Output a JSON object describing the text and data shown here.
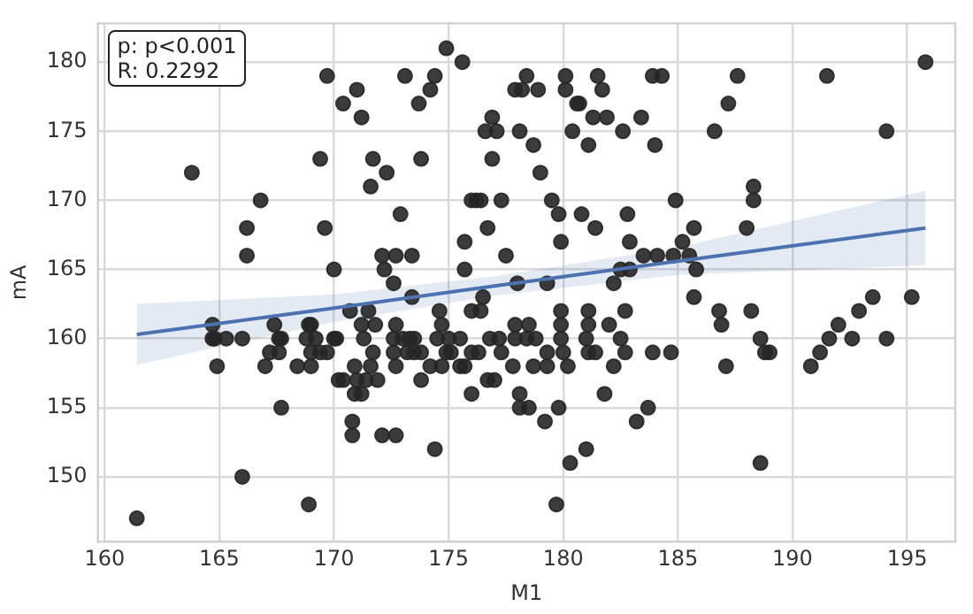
{
  "chart_data": {
    "type": "scatter",
    "xlabel": "M1",
    "ylabel": "mA",
    "annotations": [
      "p: p<0.001",
      "R: 0.2292"
    ],
    "xlim": [
      159.7,
      197.1
    ],
    "ylim": [
      145.3,
      182.8
    ],
    "xticks": [
      160,
      165,
      170,
      175,
      180,
      185,
      190,
      195
    ],
    "yticks": [
      150,
      155,
      160,
      165,
      170,
      175,
      180
    ],
    "grid": true,
    "marker": "circle",
    "series": [
      {
        "type": "scatter",
        "color": "#262626",
        "x": [
          163.8,
          166.2,
          166.8,
          166.2,
          169.4,
          169.7,
          169.6,
          170,
          170.4,
          171,
          171.2,
          171.7,
          171.6,
          172.3,
          172.1,
          172.2,
          172.7,
          172.6,
          172.9,
          173.1,
          173.4,
          173.4,
          173.7,
          173.8,
          174.2,
          174.4,
          174.9,
          175.6,
          175.7,
          175.7,
          176,
          176.2,
          176.4,
          176.6,
          176.9,
          177.1,
          176.9,
          176.7,
          177.3,
          177.5,
          176.5,
          177.9,
          178.2,
          178.9,
          178.4,
          178.1,
          178.7,
          179,
          179.5,
          179.8,
          179.9,
          180.1,
          180.1,
          180.6,
          180.7,
          180.4,
          180.8,
          181.1,
          181.3,
          181.5,
          181.7,
          181.9,
          181.4,
          182.6,
          182.8,
          182.9,
          183.4,
          183.9,
          184.3,
          184,
          184.9,
          185.7,
          185.2,
          186.6,
          187.2,
          187.6,
          188.3,
          188.3,
          188,
          191.5,
          194.1,
          195.8,
          178,
          179.3,
          182.2,
          182.5,
          182.9,
          183.5,
          184.1,
          184.8,
          185.5,
          185.8,
          185.7,
          193.5,
          195.2,
          161.4,
          164.7,
          164.7,
          164.8,
          165.3,
          166,
          164.9,
          166,
          167,
          167.2,
          167.4,
          167.6,
          167.7,
          167.6,
          167.7,
          168.4,
          168.9,
          169,
          168.8,
          169.2,
          169,
          169.4,
          169.7,
          169,
          168.9,
          170,
          170.1,
          170.2,
          170.4,
          170.7,
          170.9,
          170.8,
          170.8,
          170.9,
          171.2,
          171,
          171.4,
          171.2,
          171.3,
          171.5,
          171.6,
          171.7,
          171.8,
          171.9,
          172.1,
          172.7,
          172.6,
          173,
          173.3,
          173.5,
          172.6,
          173.2,
          173.5,
          173.8,
          172.7,
          172.7,
          173.8,
          174.2,
          174.4,
          174.5,
          174.6,
          174.7,
          174.7,
          174.9,
          175.1,
          175,
          175.5,
          175.5,
          175.7,
          176,
          176,
          176.4,
          176,
          176.3,
          176.7,
          177,
          176.8,
          177.2,
          177.3,
          177.8,
          177.9,
          177.9,
          178.1,
          178.1,
          178.5,
          178.4,
          178.8,
          178.7,
          178.5,
          179.3,
          179.3,
          179.2,
          179.7,
          179.9,
          179.9,
          179.9,
          180,
          180.2,
          179.8,
          180.3,
          181,
          181.1,
          181.1,
          181,
          181.1,
          181.4,
          181.8,
          182,
          182.2,
          182.5,
          182.7,
          182.7,
          183.2,
          183.7,
          183.9,
          184.7,
          186.8,
          186.9,
          187.1,
          188.2,
          188.6,
          188.8,
          189,
          188.6,
          190.8,
          191.2,
          191.6,
          192,
          192.6,
          192.9,
          194.1
        ],
        "values": [
          172,
          166,
          170,
          168,
          173,
          179,
          168,
          165,
          177,
          178,
          176,
          173,
          171,
          172,
          166,
          165,
          166,
          164,
          169,
          179,
          166,
          163,
          177,
          173,
          178,
          179,
          181,
          180,
          165,
          167,
          170,
          170,
          170,
          175,
          176,
          175,
          173,
          168,
          170,
          166,
          163,
          178,
          178,
          178,
          179,
          175,
          174,
          172,
          170,
          169,
          167,
          179,
          178,
          177,
          177,
          175,
          169,
          174,
          176,
          179,
          178,
          176,
          168,
          175,
          169,
          167,
          176,
          179,
          179,
          174,
          170,
          168,
          167,
          175,
          177,
          179,
          171,
          170,
          168,
          179,
          175,
          180,
          164,
          164,
          164,
          165,
          165,
          166,
          166,
          166,
          166,
          165,
          163,
          163,
          163,
          147,
          161,
          160,
          160,
          160,
          160,
          158,
          150,
          158,
          159,
          161,
          160,
          160,
          159,
          155,
          158,
          161,
          161,
          160,
          160,
          159,
          159,
          159,
          158,
          148,
          160,
          160,
          157,
          157,
          162,
          158,
          154,
          153,
          156,
          156,
          157,
          157,
          161,
          160,
          162,
          158,
          159,
          161,
          157,
          153,
          153,
          160,
          160,
          160,
          160,
          159,
          159,
          159,
          159,
          158,
          161,
          157,
          158,
          152,
          160,
          162,
          161,
          158,
          159,
          159,
          160,
          160,
          158,
          158,
          156,
          162,
          162,
          159,
          159,
          157,
          157,
          160,
          160,
          159,
          158,
          161,
          160,
          156,
          155,
          161,
          160,
          160,
          158,
          155,
          159,
          158,
          154,
          148,
          162,
          161,
          160,
          159,
          158,
          155,
          151,
          152,
          162,
          161,
          160,
          159,
          159,
          156,
          161,
          158,
          160,
          159,
          162,
          154,
          155,
          159,
          159,
          162,
          161,
          158,
          162,
          160,
          159,
          159,
          151,
          158,
          159,
          160,
          161,
          160,
          162,
          160
        ]
      },
      {
        "type": "line",
        "color": "#4c72b0",
        "marker": "none",
        "x": [
          161.4,
          170,
          177,
          185,
          195.8
        ],
        "values": [
          160.3,
          162.2,
          163.8,
          165.6,
          168.0
        ],
        "lower": [
          158.1,
          161.2,
          163.1,
          164.6,
          165.3
        ],
        "upper": [
          162.5,
          163.2,
          164.5,
          166.6,
          170.7
        ]
      }
    ]
  }
}
